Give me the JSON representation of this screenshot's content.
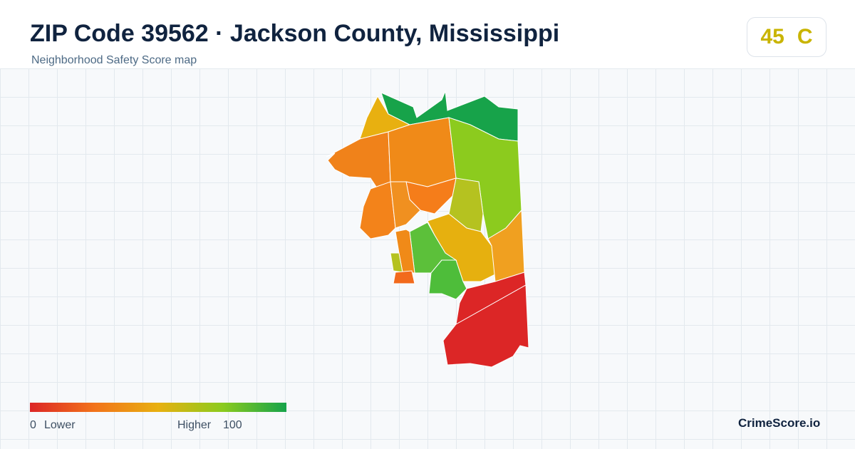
{
  "header": {
    "title": "ZIP Code 39562 · Jackson County, Mississippi",
    "subtitle": "Neighborhood Safety Score map"
  },
  "score": {
    "value": 45,
    "grade": "C"
  },
  "legend": {
    "min": 0,
    "min_label": "Lower",
    "max_label": "Higher",
    "max": 100
  },
  "brand": "CrimeScore.io"
}
